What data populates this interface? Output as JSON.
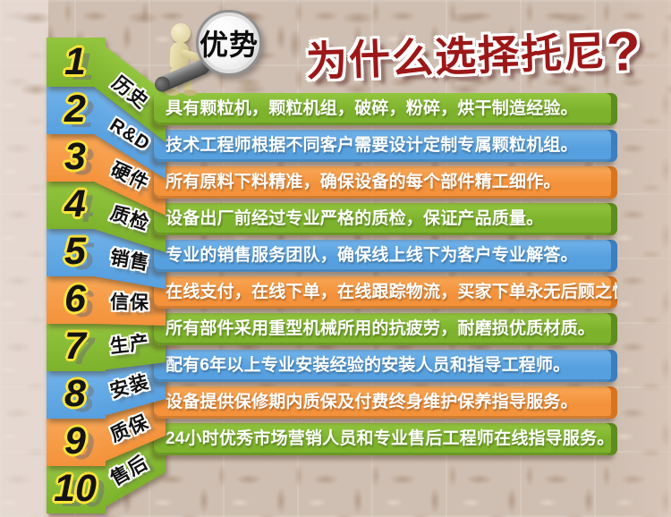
{
  "header": {
    "title": "为什么选择托尼",
    "qmark": "?",
    "badge_text": "优势"
  },
  "colors": {
    "green": "#7DB22C",
    "green_light": "#93C53F",
    "green_dark": "#5E8C1E",
    "blue": "#57A0DF",
    "blue_light": "#72B3EA",
    "blue_dark": "#3C7EBE",
    "orange": "#F4923B",
    "orange_light": "#F8A757",
    "orange_dark": "#D67420",
    "title_red": "#9C1717",
    "number_fill": "#141414",
    "number_outline": "#FFE53A"
  },
  "items": [
    {
      "number": "1",
      "label": "历史",
      "color": "green",
      "text": "具有颗粒机，颗粒机组，破碎，粉碎，烘干制造经验。"
    },
    {
      "number": "2",
      "label": "R&D",
      "color": "blue",
      "text": "技术工程师根据不同客户需要设计定制专属颗粒机组。"
    },
    {
      "number": "3",
      "label": "硬件",
      "color": "orange",
      "text": "所有原料下料精准，确保设备的每个部件精工细作。"
    },
    {
      "number": "4",
      "label": "质检",
      "color": "green",
      "text": "设备出厂前经过专业严格的质检，保证产品质量。"
    },
    {
      "number": "5",
      "label": "销售",
      "color": "blue",
      "text": "专业的销售服务团队，确保线上线下为客户专业解答。"
    },
    {
      "number": "6",
      "label": "信保",
      "color": "orange",
      "text": "在线支付，在线下单，在线跟踪物流，买家下单永无后顾之忧。"
    },
    {
      "number": "7",
      "label": "生产",
      "color": "green",
      "text": "所有部件采用重型机械所用的抗疲劳，耐磨损优质材质。"
    },
    {
      "number": "8",
      "label": "安装",
      "color": "blue",
      "text": "配有6年以上专业安装经验的安装人员和指导工程师。"
    },
    {
      "number": "9",
      "label": "质保",
      "color": "orange",
      "text": "设备提供保修期内质保及付费终身维护保养指导服务。"
    },
    {
      "number": "10",
      "label": "售后",
      "color": "green",
      "text": "24小时优秀市场营销人员和专业售后工程师在线指导服务。"
    }
  ]
}
